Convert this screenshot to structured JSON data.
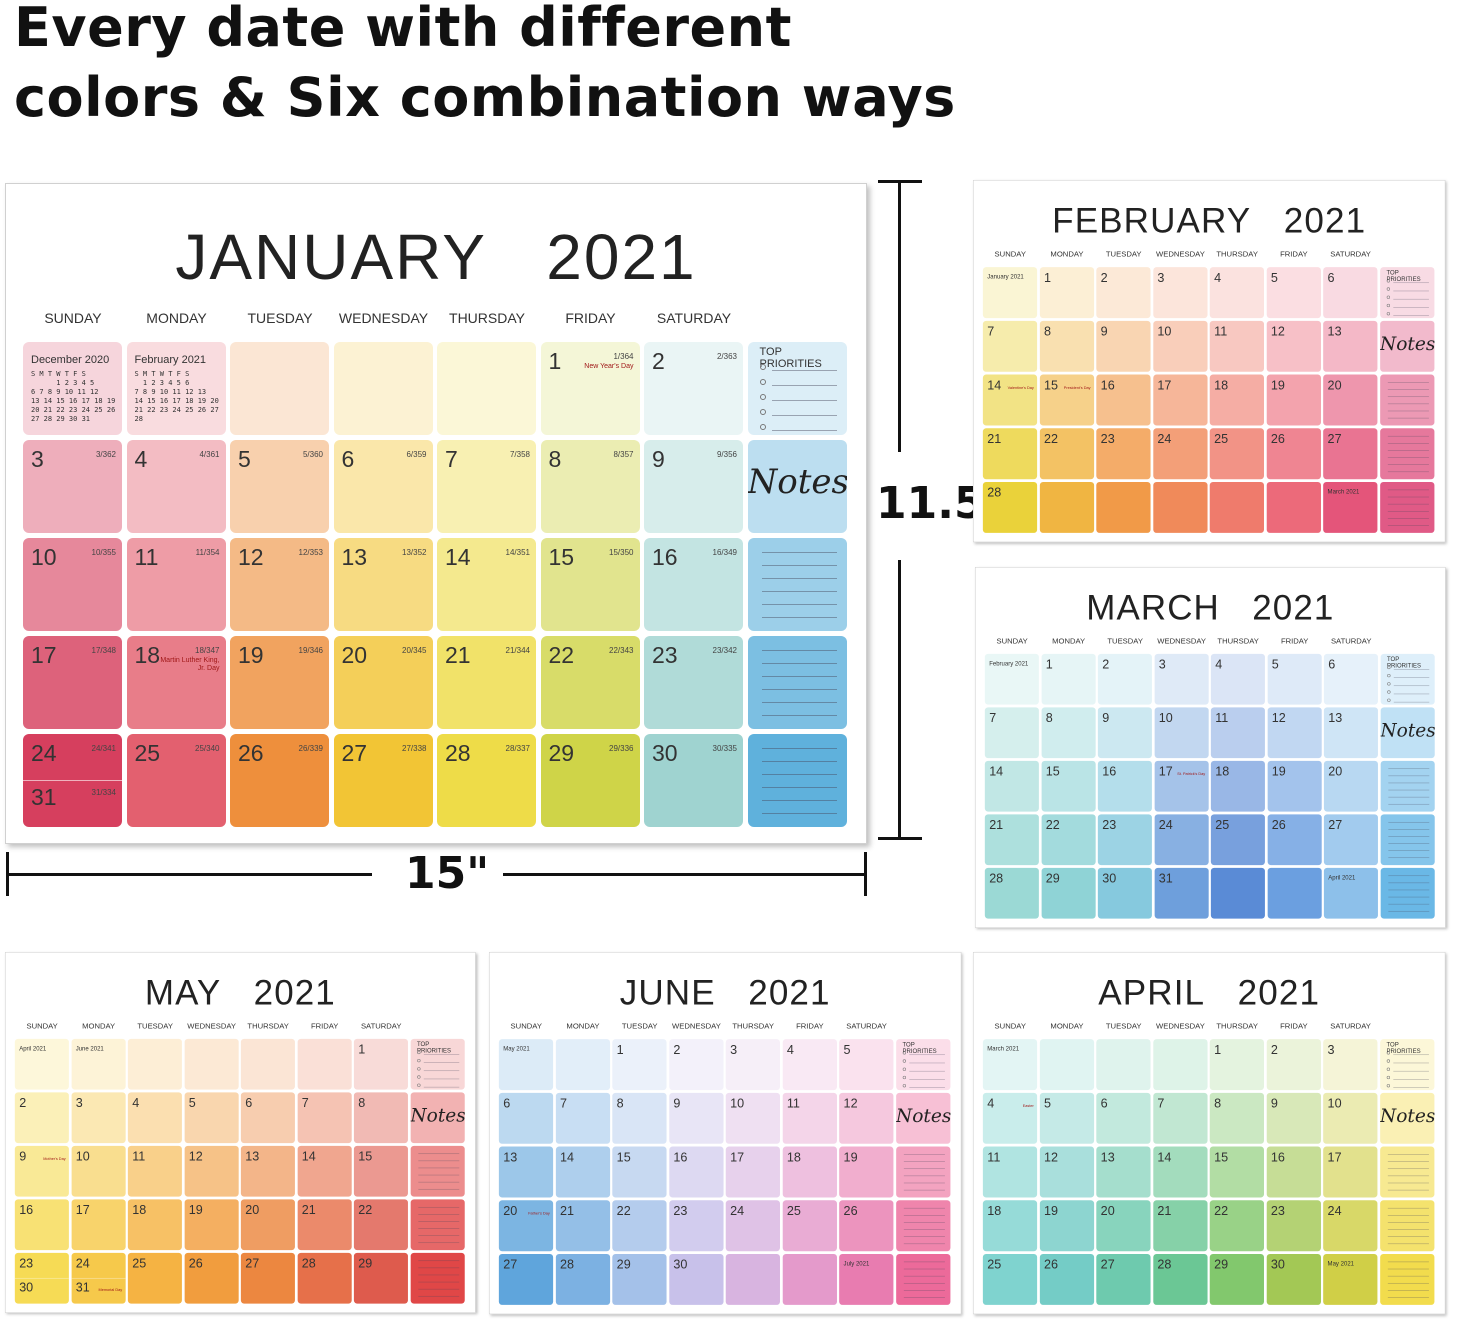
{
  "headline": [
    "Every date with different",
    "colors & Six combination ways"
  ],
  "dimensions": {
    "height": "11.5\"",
    "width": "15\""
  },
  "weekdays": [
    "SUNDAY",
    "MONDAY",
    "TUESDAY",
    "WEDNESDAY",
    "THURSDAY",
    "FRIDAY",
    "SATURDAY"
  ],
  "top_priorities": "TOP PRIORITIES",
  "notes": "Notes",
  "calendars": [
    {
      "month": "JANUARY",
      "year": "2021",
      "palette": [
        "#d63f5e",
        "#e3606f",
        "#ee8f3c",
        "#f2c535",
        "#eedc48",
        "#cfd448",
        "#9fd3d0",
        "#5fb1dc"
      ],
      "rows": [
        [
          {
            "mini": {
              "title": "December  2020",
              "lines": [
                "S M T W T F S",
                "      1 2 3 4 5",
                "6 7 8 9 10 11 12",
                "13 14 15 16 17 18 19",
                "20 21 22 23 24 25 26",
                "27 28 29 30 31"
              ]
            }
          },
          {
            "mini": {
              "title": "February  2021",
              "lines": [
                "S M T W T F S",
                "  1 2 3 4 5 6",
                "7 8 9 10 11 12 13",
                "14 15 16 17 18 19 20",
                "21 22 23 24 25 26 27",
                "28"
              ]
            }
          },
          null,
          null,
          null,
          {
            "day": 1,
            "count": "1/364",
            "note": "New Year's Day"
          },
          {
            "day": 2,
            "count": "2/363"
          }
        ],
        [
          {
            "day": 3,
            "count": "3/362"
          },
          {
            "day": 4,
            "count": "4/361"
          },
          {
            "day": 5,
            "count": "5/360"
          },
          {
            "day": 6,
            "count": "6/359"
          },
          {
            "day": 7,
            "count": "7/358"
          },
          {
            "day": 8,
            "count": "8/357"
          },
          {
            "day": 9,
            "count": "9/356"
          }
        ],
        [
          {
            "day": 10,
            "count": "10/355"
          },
          {
            "day": 11,
            "count": "11/354"
          },
          {
            "day": 12,
            "count": "12/353"
          },
          {
            "day": 13,
            "count": "13/352"
          },
          {
            "day": 14,
            "count": "14/351"
          },
          {
            "day": 15,
            "count": "15/350"
          },
          {
            "day": 16,
            "count": "16/349"
          }
        ],
        [
          {
            "day": 17,
            "count": "17/348"
          },
          {
            "day": 18,
            "count": "18/347",
            "note": "Martin Luther King, Jr. Day"
          },
          {
            "day": 19,
            "count": "19/346"
          },
          {
            "day": 20,
            "count": "20/345"
          },
          {
            "day": 21,
            "count": "21/344"
          },
          {
            "day": 22,
            "count": "22/343"
          },
          {
            "day": 23,
            "count": "23/342"
          }
        ],
        [
          {
            "split": [
              {
                "day": 24,
                "count": "24/341"
              },
              {
                "day": 31,
                "count": "31/334"
              }
            ]
          },
          {
            "day": 25,
            "count": "25/340"
          },
          {
            "day": 26,
            "count": "26/339"
          },
          {
            "day": 27,
            "count": "27/338"
          },
          {
            "day": 28,
            "count": "28/337"
          },
          {
            "day": 29,
            "count": "29/336"
          },
          {
            "day": 30,
            "count": "30/335"
          }
        ]
      ]
    },
    {
      "month": "FEBRUARY",
      "year": "2021",
      "palette": [
        "#ead23a",
        "#f0b542",
        "#f19a48",
        "#f08a5a",
        "#ef7b6c",
        "#ec6a7a",
        "#e4557a",
        "#e05a86"
      ],
      "rows": [
        [
          {
            "mini": {
              "title": "January  2021"
            }
          },
          1,
          2,
          3,
          4,
          5,
          6
        ],
        [
          7,
          8,
          9,
          10,
          11,
          12,
          13
        ],
        [
          {
            "day": 14,
            "note": "Valentine's Day"
          },
          {
            "day": 15,
            "note": "President's Day"
          },
          16,
          17,
          18,
          19,
          20
        ],
        [
          21,
          22,
          23,
          24,
          25,
          26,
          27
        ],
        [
          28,
          null,
          null,
          null,
          null,
          null,
          {
            "mini": {
              "title": "March  2021"
            }
          }
        ]
      ]
    },
    {
      "month": "MARCH",
      "year": "2021",
      "palette": [
        "#9bd9d5",
        "#8fd3d6",
        "#86c9de",
        "#6e9fdc",
        "#5a8bd6",
        "#6b9fe0",
        "#8dc0ea",
        "#6ab8e6"
      ],
      "rows": [
        [
          {
            "mini": {
              "title": "February  2021"
            }
          },
          1,
          2,
          3,
          4,
          5,
          6
        ],
        [
          7,
          8,
          9,
          10,
          11,
          12,
          13
        ],
        [
          14,
          15,
          16,
          {
            "day": 17,
            "note": "St. Patrick's Day"
          },
          18,
          19,
          20
        ],
        [
          21,
          22,
          23,
          24,
          25,
          26,
          27
        ],
        [
          28,
          29,
          30,
          31,
          null,
          null,
          {
            "mini": {
              "title": "April  2021"
            }
          }
        ]
      ]
    },
    {
      "month": "MAY",
      "year": "2021",
      "palette": [
        "#f6db55",
        "#f6c94b",
        "#f5b343",
        "#f19d3e",
        "#ec8740",
        "#e6704a",
        "#de5b4d",
        "#e04747"
      ],
      "rows": [
        [
          {
            "mini": {
              "title": "April  2021"
            }
          },
          {
            "mini": {
              "title": "June  2021"
            }
          },
          null,
          null,
          null,
          null,
          1
        ],
        [
          2,
          3,
          4,
          5,
          6,
          7,
          8
        ],
        [
          {
            "day": 9,
            "note": "Mother's Day"
          },
          10,
          11,
          12,
          13,
          14,
          15
        ],
        [
          16,
          17,
          18,
          19,
          20,
          21,
          22
        ],
        [
          {
            "split": [
              {
                "day": 23
              },
              {
                "day": 30
              }
            ]
          },
          {
            "split": [
              {
                "day": 24
              },
              {
                "day": 31,
                "note": "Memorial Day"
              }
            ]
          },
          25,
          26,
          27,
          28,
          29
        ]
      ]
    },
    {
      "month": "JUNE",
      "year": "2021",
      "palette": [
        "#5fa5dc",
        "#7cb1e2",
        "#a4c1e9",
        "#c8c1ea",
        "#d8b4e0",
        "#e49acb",
        "#e87cb0",
        "#ec6a9a"
      ],
      "rows": [
        [
          {
            "mini": {
              "title": "May  2021"
            }
          },
          null,
          1,
          2,
          3,
          4,
          5
        ],
        [
          6,
          7,
          8,
          9,
          10,
          11,
          12
        ],
        [
          13,
          14,
          15,
          16,
          17,
          18,
          19
        ],
        [
          {
            "day": 20,
            "note": "Father's Day"
          },
          21,
          22,
          23,
          24,
          25,
          26
        ],
        [
          27,
          28,
          29,
          30,
          null,
          null,
          {
            "mini": {
              "title": "July  2021"
            }
          }
        ]
      ]
    },
    {
      "month": "APRIL",
      "year": "2021",
      "palette": [
        "#7fd3cf",
        "#74ccc6",
        "#6ecaae",
        "#6bc795",
        "#82c86d",
        "#a3c855",
        "#d0cf47",
        "#f2dc4d"
      ],
      "rows": [
        [
          {
            "mini": {
              "title": "March  2021"
            }
          },
          null,
          null,
          null,
          1,
          2,
          3
        ],
        [
          {
            "day": 4,
            "note": "Easter"
          },
          5,
          6,
          7,
          8,
          9,
          10
        ],
        [
          11,
          12,
          13,
          14,
          15,
          16,
          17
        ],
        [
          18,
          19,
          20,
          21,
          22,
          23,
          24
        ],
        [
          25,
          26,
          27,
          28,
          29,
          30,
          {
            "mini": {
              "title": "May  2021"
            }
          }
        ]
      ]
    }
  ]
}
